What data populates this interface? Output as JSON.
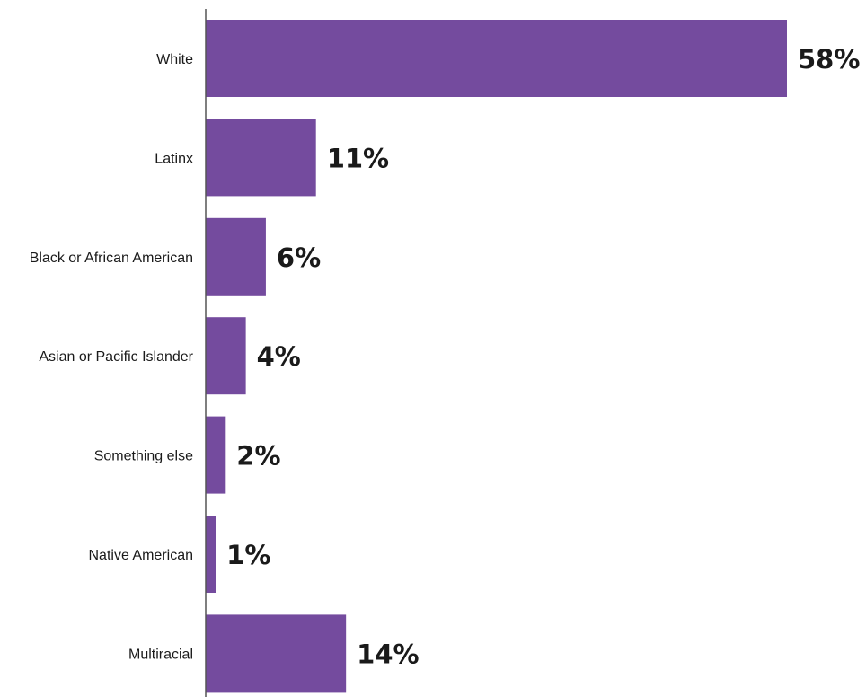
{
  "chart_data": {
    "type": "bar",
    "orientation": "horizontal",
    "title": "",
    "xlabel": "",
    "ylabel": "",
    "categories": [
      "White",
      "Latinx",
      "Black or African American",
      "Asian or Pacific Islander",
      "Something else",
      "Native American",
      "Multiracial"
    ],
    "values": [
      58,
      11,
      6,
      4,
      2,
      1,
      14
    ],
    "value_labels": [
      "58%",
      "11%",
      "6%",
      "4%",
      "2%",
      "1%",
      "14%"
    ],
    "unit": "%",
    "xlim": [
      0,
      58
    ],
    "grid": false,
    "legend": "none",
    "colors": {
      "bar": "#744B9E",
      "axis": "#555555",
      "text": "#1a1a1a"
    }
  }
}
